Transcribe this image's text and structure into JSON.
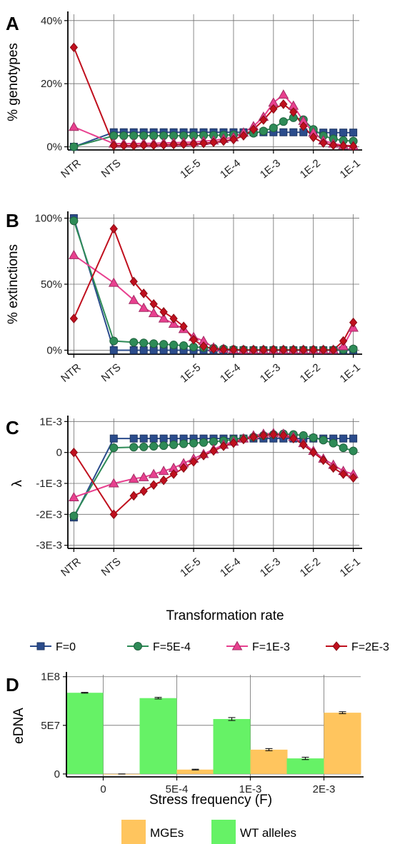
{
  "figure": {
    "panels": [
      "A",
      "B",
      "C",
      "D"
    ]
  },
  "chart_data": [
    {
      "panel": "A",
      "type": "line",
      "ylabel": "% genotypes",
      "xlabel": "",
      "x_tick_labels": [
        "NTR",
        "NTS",
        "1E-5",
        "1E-4",
        "1E-3",
        "1E-2",
        "1E-1"
      ],
      "x_tick_positions": [
        -8,
        -7,
        -5,
        -4,
        -3,
        -2,
        -1
      ],
      "y_ticks": [
        0,
        20,
        40
      ],
      "y_tick_labels": [
        "0%",
        "20%",
        "40%"
      ],
      "ylim": [
        -1,
        42
      ],
      "xlim": [
        -8.15,
        -0.85
      ],
      "grid": true,
      "series": [
        {
          "name": "F=0",
          "marker": "square",
          "color": "#2B4C8C",
          "x": [
            -8,
            -7,
            -6.75,
            -6.5,
            -6.25,
            -6,
            -5.75,
            -5.5,
            -5.25,
            -5,
            -4.75,
            -4.5,
            -4.25,
            -4,
            -3.75,
            -3.5,
            -3.25,
            -3,
            -2.75,
            -2.5,
            -2.25,
            -2,
            -1.75,
            -1.5,
            -1.25,
            -1
          ],
          "y": [
            0,
            4.6,
            4.6,
            4.6,
            4.6,
            4.6,
            4.6,
            4.6,
            4.6,
            4.6,
            4.6,
            4.6,
            4.6,
            4.6,
            4.6,
            4.6,
            4.6,
            4.6,
            4.6,
            4.6,
            4.6,
            4.6,
            4.5,
            4.5,
            4.5,
            4.5
          ]
        },
        {
          "name": "F=5E-4",
          "marker": "circle",
          "color": "#2E8B57",
          "x": [
            -8,
            -7,
            -6.75,
            -6.5,
            -6.25,
            -6,
            -5.75,
            -5.5,
            -5.25,
            -5,
            -4.75,
            -4.5,
            -4.25,
            -4,
            -3.75,
            -3.5,
            -3.25,
            -3,
            -2.75,
            -2.5,
            -2.25,
            -2,
            -1.75,
            -1.5,
            -1.25,
            -1
          ],
          "y": [
            0,
            3.5,
            3.5,
            3.5,
            3.5,
            3.5,
            3.5,
            3.5,
            3.5,
            3.5,
            3.6,
            3.6,
            3.7,
            3.8,
            4.0,
            4.3,
            5.0,
            6.0,
            8.0,
            9.2,
            8.6,
            5.5,
            3.5,
            2.5,
            2.0,
            1.8
          ]
        },
        {
          "name": "F=1E-3",
          "marker": "triangle",
          "color": "#E8408F",
          "x": [
            -8,
            -7,
            -6.75,
            -6.5,
            -6.25,
            -6,
            -5.75,
            -5.5,
            -5.25,
            -5,
            -4.75,
            -4.5,
            -4.25,
            -4,
            -3.75,
            -3.5,
            -3.25,
            -3,
            -2.75,
            -2.5,
            -2.25,
            -2,
            -1.75,
            -1.5,
            -1.25,
            -1
          ],
          "y": [
            6.3,
            1.0,
            1.0,
            1.0,
            1.1,
            1.1,
            1.2,
            1.3,
            1.4,
            1.5,
            1.8,
            2.0,
            2.5,
            3.0,
            4.5,
            6.5,
            9.5,
            14,
            16.5,
            13,
            8.2,
            4.5,
            2.0,
            1.0,
            0.5,
            0.3
          ]
        },
        {
          "name": "F=2E-3",
          "marker": "diamond",
          "color": "#C0101E",
          "x": [
            -8,
            -7,
            -6.75,
            -6.5,
            -6.25,
            -6,
            -5.75,
            -5.5,
            -5.25,
            -5,
            -4.75,
            -4.5,
            -4.25,
            -4,
            -3.75,
            -3.5,
            -3.25,
            -3,
            -2.75,
            -2.5,
            -2.25,
            -2,
            -1.75,
            -1.5,
            -1.25,
            -1
          ],
          "y": [
            31.5,
            0.4,
            0.4,
            0.4,
            0.5,
            0.5,
            0.6,
            0.7,
            0.8,
            0.9,
            1.1,
            1.4,
            1.8,
            2.3,
            3.5,
            5.5,
            8.5,
            12,
            13.5,
            11,
            6.5,
            3.0,
            1.2,
            0.5,
            0.3,
            0.2
          ]
        }
      ]
    },
    {
      "panel": "B",
      "type": "line",
      "ylabel": "% extinctions",
      "xlabel": "",
      "x_tick_labels": [
        "NTR",
        "NTS",
        "1E-5",
        "1E-4",
        "1E-3",
        "1E-2",
        "1E-1"
      ],
      "x_tick_positions": [
        -8,
        -7,
        -5,
        -4,
        -3,
        -2,
        -1
      ],
      "y_ticks": [
        0,
        50,
        100
      ],
      "y_tick_labels": [
        "0%",
        "50%",
        "100%"
      ],
      "ylim": [
        -3,
        103
      ],
      "xlim": [
        -8.15,
        -0.85
      ],
      "grid": true,
      "series": [
        {
          "name": "F=0",
          "marker": "square",
          "color": "#2B4C8C",
          "x": [
            -8,
            -7,
            -6.5,
            -6.25,
            -6,
            -5.75,
            -5.5,
            -5.25,
            -5,
            -4.75,
            -4.5,
            -4.25,
            -4,
            -3.75,
            -3.5,
            -3.25,
            -3,
            -2.75,
            -2.5,
            -2.25,
            -2,
            -1.75,
            -1.5,
            -1.25,
            -1
          ],
          "y": [
            100,
            0,
            0,
            0,
            0,
            0,
            0,
            0,
            0,
            0,
            0,
            0,
            0,
            0,
            0,
            0,
            0,
            0,
            0,
            0,
            0,
            0,
            0,
            0,
            0
          ]
        },
        {
          "name": "F=5E-4",
          "marker": "circle",
          "color": "#2E8B57",
          "x": [
            -8,
            -7,
            -6.5,
            -6.25,
            -6,
            -5.75,
            -5.5,
            -5.25,
            -5,
            -4.75,
            -4.5,
            -4.25,
            -4,
            -3.75,
            -3.5,
            -3.25,
            -3,
            -2.75,
            -2.5,
            -2.25,
            -2,
            -1.75,
            -1.5,
            -1.25,
            -1
          ],
          "y": [
            98,
            7,
            6,
            5.5,
            5,
            4.5,
            4,
            3.5,
            2.5,
            2,
            1.5,
            1,
            0.5,
            0.3,
            0.2,
            0.2,
            0.2,
            0.2,
            0.2,
            0.2,
            0.2,
            0.2,
            0.2,
            0.5,
            1
          ]
        },
        {
          "name": "F=1E-3",
          "marker": "triangle",
          "color": "#E8408F",
          "x": [
            -8,
            -7,
            -6.5,
            -6.25,
            -6,
            -5.75,
            -5.5,
            -5.25,
            -5,
            -4.75,
            -4.5,
            -4.25,
            -4,
            -3.75,
            -3.5,
            -3.25,
            -3,
            -2.75,
            -2.5,
            -2.25,
            -2,
            -1.75,
            -1.5,
            -1.25,
            -1
          ],
          "y": [
            72,
            51,
            38,
            32,
            28,
            24,
            20,
            16,
            10,
            7,
            2,
            1,
            0.5,
            0.3,
            0.3,
            0.3,
            0.3,
            0.3,
            0.3,
            0.3,
            0.3,
            0.3,
            0.3,
            3,
            17
          ]
        },
        {
          "name": "F=2E-3",
          "marker": "diamond",
          "color": "#C0101E",
          "x": [
            -8,
            -7,
            -6.5,
            -6.25,
            -6,
            -5.75,
            -5.5,
            -5.25,
            -5,
            -4.75,
            -4.5,
            -4.25,
            -4,
            -3.75,
            -3.5,
            -3.25,
            -3,
            -2.75,
            -2.5,
            -2.25,
            -2,
            -1.75,
            -1.5,
            -1.25,
            -1
          ],
          "y": [
            24,
            92,
            52,
            43,
            35,
            29,
            24,
            18,
            8,
            3,
            1,
            0.5,
            0.3,
            0.2,
            0.2,
            0.2,
            0.2,
            0.2,
            0.2,
            0.2,
            0.2,
            0.2,
            0.2,
            7,
            21
          ]
        }
      ]
    },
    {
      "panel": "C",
      "type": "line",
      "ylabel": "λ",
      "xlabel": "Transformation rate",
      "x_tick_labels": [
        "NTR",
        "NTS",
        "1E-5",
        "1E-4",
        "1E-3",
        "1E-2",
        "1E-1"
      ],
      "x_tick_positions": [
        -8,
        -7,
        -5,
        -4,
        -3,
        -2,
        -1
      ],
      "y_ticks": [
        1,
        0,
        -1,
        -2,
        -3
      ],
      "y_tick_labels": [
        "1E-3",
        "0",
        "-1E-3",
        "-2E-3",
        "-3E-3"
      ],
      "y_unit_note": "values in units of 1E-3",
      "ylim": [
        -3.1,
        1.1
      ],
      "xlim": [
        -8.15,
        -0.85
      ],
      "grid": true,
      "series": [
        {
          "name": "F=0",
          "marker": "square",
          "color": "#2B4C8C",
          "x": [
            -8,
            -7,
            -6.5,
            -6.25,
            -6,
            -5.75,
            -5.5,
            -5.25,
            -5,
            -4.75,
            -4.5,
            -4.25,
            -4,
            -3.75,
            -3.5,
            -3.25,
            -3,
            -2.75,
            -2.5,
            -2.25,
            -2,
            -1.75,
            -1.5,
            -1.25,
            -1
          ],
          "y": [
            -2.1,
            0.45,
            0.45,
            0.45,
            0.45,
            0.45,
            0.45,
            0.45,
            0.45,
            0.45,
            0.45,
            0.45,
            0.45,
            0.45,
            0.45,
            0.45,
            0.45,
            0.45,
            0.45,
            0.45,
            0.45,
            0.45,
            0.45,
            0.45,
            0.45
          ]
        },
        {
          "name": "F=5E-4",
          "marker": "circle",
          "color": "#2E8B57",
          "x": [
            -8,
            -7,
            -6.5,
            -6.25,
            -6,
            -5.75,
            -5.5,
            -5.25,
            -5,
            -4.75,
            -4.5,
            -4.25,
            -4,
            -3.75,
            -3.5,
            -3.25,
            -3,
            -2.75,
            -2.5,
            -2.25,
            -2,
            -1.75,
            -1.5,
            -1.25,
            -1
          ],
          "y": [
            -2.05,
            0.15,
            0.17,
            0.18,
            0.2,
            0.22,
            0.25,
            0.28,
            0.3,
            0.32,
            0.35,
            0.38,
            0.42,
            0.45,
            0.5,
            0.55,
            0.58,
            0.6,
            0.58,
            0.55,
            0.48,
            0.4,
            0.3,
            0.15,
            0.05
          ]
        },
        {
          "name": "F=1E-3",
          "marker": "triangle",
          "color": "#E8408F",
          "x": [
            -8,
            -7,
            -6.5,
            -6.25,
            -6,
            -5.75,
            -5.5,
            -5.25,
            -5,
            -4.75,
            -4.5,
            -4.25,
            -4,
            -3.75,
            -3.5,
            -3.25,
            -3,
            -2.75,
            -2.5,
            -2.25,
            -2,
            -1.75,
            -1.5,
            -1.25,
            -1
          ],
          "y": [
            -1.45,
            -1.0,
            -0.85,
            -0.8,
            -0.7,
            -0.6,
            -0.5,
            -0.35,
            -0.2,
            -0.05,
            0.1,
            0.25,
            0.35,
            0.45,
            0.55,
            0.6,
            0.62,
            0.6,
            0.5,
            0.3,
            0.05,
            -0.2,
            -0.4,
            -0.6,
            -0.7
          ]
        },
        {
          "name": "F=2E-3",
          "marker": "diamond",
          "color": "#C0101E",
          "x": [
            -8,
            -7,
            -6.5,
            -6.25,
            -6,
            -5.75,
            -5.5,
            -5.25,
            -5,
            -4.75,
            -4.5,
            -4.25,
            -4,
            -3.75,
            -3.5,
            -3.25,
            -3,
            -2.75,
            -2.5,
            -2.25,
            -2,
            -1.75,
            -1.5,
            -1.25,
            -1
          ],
          "y": [
            0,
            -2.0,
            -1.4,
            -1.25,
            -1.05,
            -0.9,
            -0.7,
            -0.5,
            -0.3,
            -0.1,
            0.05,
            0.2,
            0.3,
            0.42,
            0.5,
            0.55,
            0.58,
            0.55,
            0.45,
            0.25,
            0.0,
            -0.25,
            -0.5,
            -0.7,
            -0.82
          ]
        }
      ]
    },
    {
      "panel": "D",
      "type": "bar",
      "ylabel": "eDNA",
      "xlabel": "Stress frequency (F)",
      "categories": [
        "0",
        "5E-4",
        "1E-3",
        "2E-3"
      ],
      "y_ticks": [
        0,
        50000000,
        100000000
      ],
      "y_tick_labels": [
        "0",
        "5E7",
        "1E8"
      ],
      "ylim": [
        -3000000,
        102000000
      ],
      "grid": true,
      "error_bars": true,
      "series": [
        {
          "name": "WT alleles",
          "color": "#66F266",
          "values": [
            83500000,
            78000000,
            56500000,
            16000000
          ],
          "errors": [
            400000,
            800000,
            1500000,
            1200000
          ]
        },
        {
          "name": "MGEs",
          "color": "#FFC55E",
          "values": [
            0,
            4500000,
            25000000,
            63000000
          ],
          "errors": [
            0,
            400000,
            1100000,
            1000000
          ]
        }
      ],
      "legend_order": [
        "MGEs",
        "WT alleles"
      ]
    }
  ],
  "legend_lines": {
    "items": [
      "F=0",
      "F=5E-4",
      "F=1E-3",
      "F=2E-3"
    ]
  }
}
